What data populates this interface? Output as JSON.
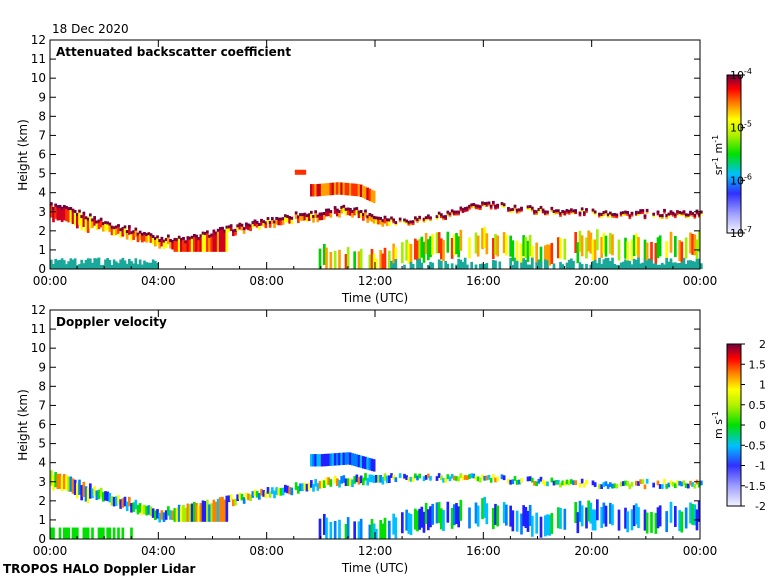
{
  "date_label": "18 Dec 2020",
  "footer_label": "TROPOS HALO Doppler Lidar",
  "chart_data": [
    {
      "type": "heatmap",
      "title": "Attenuated backscatter coefficient",
      "xlabel": "Time (UTC)",
      "ylabel": "Height (km)",
      "x_ticks": [
        "00:00",
        "04:00",
        "08:00",
        "12:00",
        "16:00",
        "20:00",
        "00:00"
      ],
      "y_ticks": [
        0,
        1,
        2,
        3,
        4,
        5,
        6,
        7,
        8,
        9,
        10,
        11,
        12
      ],
      "xlim_hours": [
        0,
        24
      ],
      "ylim_km": [
        0,
        12
      ],
      "colorbar": {
        "label_base": "sr",
        "label_exp1": "-1",
        "label_unit2": " m",
        "label_exp2": "-1",
        "ticks": [
          {
            "base": "10",
            "exp": "-4",
            "log": -4
          },
          {
            "base": "10",
            "exp": "-5",
            "log": -5
          },
          {
            "base": "10",
            "exp": "-6",
            "log": -6
          },
          {
            "base": "10",
            "exp": "-7",
            "log": -7
          }
        ],
        "range_log": [
          -7,
          -4
        ]
      },
      "features": [
        {
          "name": "mixing-layer top",
          "t_hours": [
            0,
            1,
            2,
            3,
            4,
            5,
            6,
            7,
            8,
            9,
            10,
            11,
            12,
            13,
            14,
            15,
            16,
            17,
            18,
            19,
            20,
            21,
            22,
            23,
            24
          ],
          "height_km": [
            3.4,
            3.0,
            2.5,
            2.1,
            1.7,
            1.6,
            2.0,
            2.3,
            2.6,
            2.9,
            3.0,
            3.3,
            2.8,
            2.6,
            2.8,
            3.1,
            3.5,
            3.3,
            3.2,
            3.1,
            3.1,
            3.0,
            3.0,
            3.0,
            3.0
          ]
        },
        {
          "name": "elevated cloud",
          "t_hours": [
            9.8,
            10.6,
            11.4,
            12.0
          ],
          "height_km": [
            4.3,
            4.4,
            4.3,
            3.9
          ]
        },
        {
          "name": "cloud near 5 km",
          "t_hours": [
            9.0,
            9.4
          ],
          "height_km": [
            5.1,
            5.1
          ]
        },
        {
          "name": "low clouds",
          "t_hours": [
            10,
            12,
            14,
            16,
            18,
            20,
            22,
            24
          ],
          "height_km": [
            1.0,
            0.6,
            1.5,
            1.8,
            1.2,
            1.6,
            1.4,
            1.6
          ]
        },
        {
          "name": "near-surface layer",
          "t_hours": [
            0,
            24
          ],
          "height_km": [
            0.3,
            0.3
          ]
        }
      ]
    },
    {
      "type": "heatmap",
      "title": "Doppler velocity",
      "xlabel": "Time (UTC)",
      "ylabel": "Height (km)",
      "x_ticks": [
        "00:00",
        "04:00",
        "08:00",
        "12:00",
        "16:00",
        "20:00",
        "00:00"
      ],
      "y_ticks": [
        0,
        1,
        2,
        3,
        4,
        5,
        6,
        7,
        8,
        9,
        10,
        11,
        12
      ],
      "xlim_hours": [
        0,
        24
      ],
      "ylim_km": [
        0,
        12
      ],
      "colorbar": {
        "label_base": "m s",
        "label_exp": "-1",
        "ticks": [
          "2",
          "1.5",
          "1",
          "0.5",
          "0",
          "-0.5",
          "-1",
          "-1.5",
          "-2"
        ],
        "range": [
          -2,
          2
        ]
      },
      "features": [
        {
          "name": "mixing-layer velocity field",
          "t_hours": [
            0,
            2,
            4,
            6,
            8,
            10,
            12,
            16,
            20,
            24
          ],
          "height_km": [
            3.5,
            2.5,
            1.5,
            2.0,
            2.6,
            3.1,
            3.4,
            3.3,
            3.0,
            3.0
          ]
        },
        {
          "name": "elevated cloud velocity",
          "t_hours": [
            10,
            11,
            12
          ],
          "height_km": [
            4.3,
            4.4,
            4.0
          ]
        }
      ]
    }
  ]
}
